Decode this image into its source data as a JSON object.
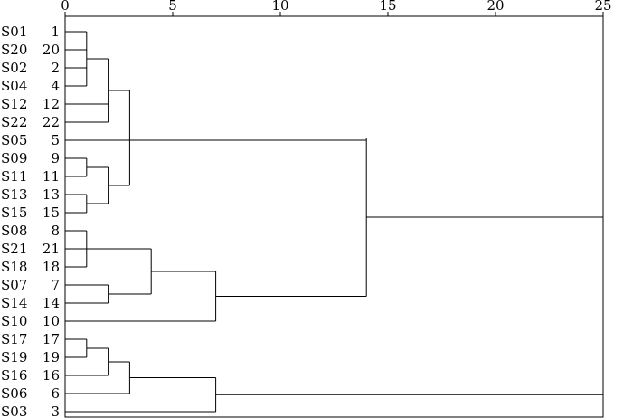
{
  "chart_data": {
    "type": "dendrogram",
    "title": "",
    "xlabel": "",
    "ylabel": "",
    "xlim": [
      0,
      25
    ],
    "x_ticks": [
      0,
      5,
      10,
      15,
      20,
      25
    ],
    "grid": false,
    "legend": "none",
    "line_color": "#000000",
    "leaves": [
      {
        "name": "S01",
        "number": "1"
      },
      {
        "name": "S20",
        "number": "20"
      },
      {
        "name": "S02",
        "number": "2"
      },
      {
        "name": "S04",
        "number": "4"
      },
      {
        "name": "S12",
        "number": "12"
      },
      {
        "name": "S22",
        "number": "22"
      },
      {
        "name": "S05",
        "number": "5"
      },
      {
        "name": "S09",
        "number": "9"
      },
      {
        "name": "S11",
        "number": "11"
      },
      {
        "name": "S13",
        "number": "13"
      },
      {
        "name": "S15",
        "number": "15"
      },
      {
        "name": "S08",
        "number": "8"
      },
      {
        "name": "S21",
        "number": "21"
      },
      {
        "name": "S18",
        "number": "18"
      },
      {
        "name": "S07",
        "number": "7"
      },
      {
        "name": "S14",
        "number": "14"
      },
      {
        "name": "S10",
        "number": "10"
      },
      {
        "name": "S17",
        "number": "17"
      },
      {
        "name": "S19",
        "number": "19"
      },
      {
        "name": "S16",
        "number": "16"
      },
      {
        "name": "S06",
        "number": "6"
      },
      {
        "name": "S03",
        "number": "3"
      }
    ],
    "merges": [
      {
        "id": "m1",
        "children": [
          "1",
          "20",
          "2",
          "4"
        ],
        "height": 1
      },
      {
        "id": "m2",
        "children": [
          "m1",
          "12",
          "22"
        ],
        "height": 2
      },
      {
        "id": "m3",
        "children": [
          "9",
          "11"
        ],
        "height": 1
      },
      {
        "id": "m4",
        "children": [
          "13",
          "15"
        ],
        "height": 1
      },
      {
        "id": "m5",
        "children": [
          "m3",
          "m4"
        ],
        "height": 2
      },
      {
        "id": "m6",
        "children": [
          "m2",
          "m5"
        ],
        "height": 3
      },
      {
        "id": "m7",
        "children": [
          "8",
          "21",
          "18"
        ],
        "height": 1
      },
      {
        "id": "m8",
        "children": [
          "7",
          "14"
        ],
        "height": 2
      },
      {
        "id": "m9",
        "children": [
          "m7",
          "m8"
        ],
        "height": 4
      },
      {
        "id": "m10",
        "children": [
          "m9",
          "10"
        ],
        "height": 7
      },
      {
        "id": "m11",
        "children": [
          "m6",
          "5",
          "m10"
        ],
        "height": 14
      },
      {
        "id": "m12",
        "children": [
          "17",
          "19"
        ],
        "height": 1
      },
      {
        "id": "m13",
        "children": [
          "m12",
          "16"
        ],
        "height": 2
      },
      {
        "id": "m14",
        "children": [
          "m13",
          "6"
        ],
        "height": 3
      },
      {
        "id": "m15",
        "children": [
          "m14",
          "3"
        ],
        "height": 7
      },
      {
        "id": "m16",
        "children": [
          "m11",
          "m15"
        ],
        "height": 25
      }
    ]
  }
}
